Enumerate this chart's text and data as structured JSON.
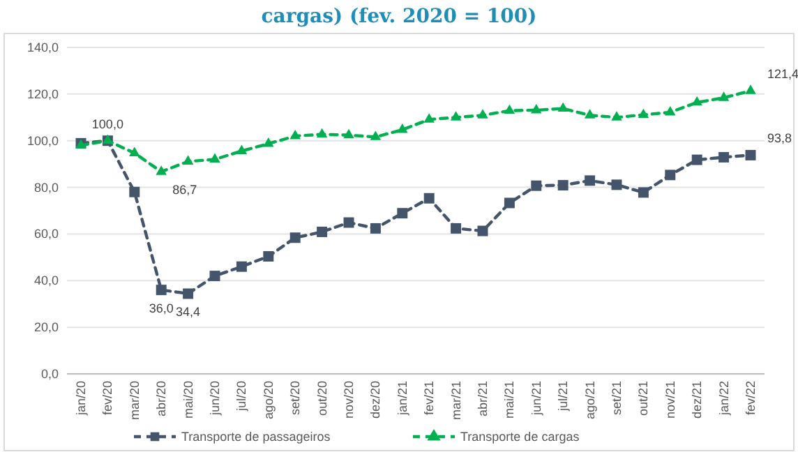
{
  "chart_data": {
    "type": "line",
    "title": "cargas) (fev. 2020 = 100)",
    "categories": [
      "jan/20",
      "fev/20",
      "mar/20",
      "abr/20",
      "mai/20",
      "jun/20",
      "jul/20",
      "ago/20",
      "set/20",
      "out/20",
      "nov/20",
      "dez/20",
      "jan/21",
      "fev/21",
      "mar/21",
      "abr/21",
      "mai/21",
      "jun/21",
      "jul/21",
      "ago/21",
      "set/21",
      "out/21",
      "nov/21",
      "dez/21",
      "jan/22",
      "fev/22"
    ],
    "series": [
      {
        "name": "Transporte de passageiros",
        "color": "#44546a",
        "marker": "square",
        "values": [
          98.9,
          100,
          78,
          36.0,
          34.4,
          42,
          46,
          50.4,
          58.4,
          60.9,
          64.9,
          62.4,
          68.9,
          75.3,
          62.4,
          61.3,
          73.3,
          80.7,
          80.9,
          82.9,
          81.1,
          77.8,
          85.3,
          91.8,
          92.9,
          93.8
        ],
        "value_labels": [
          null,
          null,
          null,
          "36,0",
          "34,4",
          null,
          null,
          null,
          null,
          null,
          null,
          null,
          null,
          null,
          null,
          null,
          null,
          null,
          null,
          null,
          null,
          null,
          null,
          null,
          null,
          "93,8"
        ]
      },
      {
        "name": "Transporte de cargas",
        "color": "#00b050",
        "marker": "triangle",
        "values": [
          98,
          100,
          94.7,
          86.7,
          91.1,
          92,
          95.6,
          98.7,
          102,
          102.7,
          102.4,
          101.6,
          104.7,
          109.1,
          110,
          110.9,
          112.9,
          113.1,
          113.8,
          110.9,
          110,
          111.1,
          112.2,
          116.4,
          118.4,
          121.4
        ],
        "value_labels": [
          null,
          "100,0",
          null,
          "86,7",
          null,
          null,
          null,
          null,
          null,
          null,
          null,
          null,
          null,
          null,
          null,
          null,
          null,
          null,
          null,
          null,
          null,
          null,
          null,
          null,
          null,
          "121,4"
        ]
      }
    ],
    "ylim": [
      0,
      140
    ],
    "yticks": [
      {
        "value": 0,
        "label": "0,0"
      },
      {
        "value": 20,
        "label": "20,0"
      },
      {
        "value": 40,
        "label": "40,0"
      },
      {
        "value": 60,
        "label": "60,0"
      },
      {
        "value": 80,
        "label": "80,0"
      },
      {
        "value": 100,
        "label": "100,0"
      },
      {
        "value": 120,
        "label": "120,0"
      },
      {
        "value": 140,
        "label": "140,0"
      }
    ],
    "grid": "y",
    "legend": "bottom",
    "line_style": "dashed"
  }
}
